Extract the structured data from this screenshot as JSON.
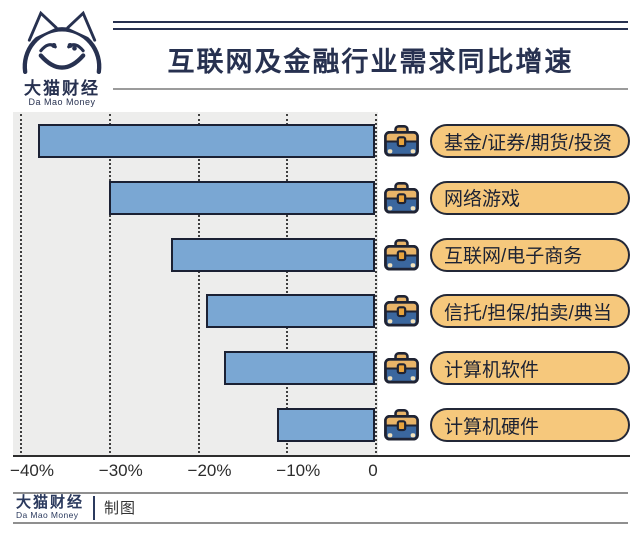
{
  "header": {
    "logo": {
      "name_cn": "大猫财经",
      "name_en": "Da Mao Money"
    },
    "title": "互联网及金融行业需求同比增速"
  },
  "chart_data": {
    "type": "bar",
    "orientation": "horizontal",
    "title": "互联网及金融行业需求同比增速",
    "categories": [
      "基金/证券/期货/投资",
      "网络游戏",
      "互联网/电子商务",
      "信托/担保/拍卖/典当",
      "计算机软件",
      "计算机硬件"
    ],
    "values": [
      -38,
      -30,
      -23,
      -19,
      -17,
      -11
    ],
    "unit": "%",
    "xlim": [
      -41,
      0.5
    ],
    "x_ticks": [
      {
        "label": "−40%",
        "value": -40
      },
      {
        "label": "−30%",
        "value": -30
      },
      {
        "label": "−20%",
        "value": -20
      },
      {
        "label": "−10%",
        "value": -10
      },
      {
        "label": "0",
        "value": 0
      }
    ],
    "grid": "dotted-vertical",
    "legend": "none",
    "row_icon": "briefcase-icon",
    "colors": {
      "bar": "#7aa7d3",
      "bar_border": "#1b2134",
      "plot_background": "#ededec",
      "gridline": "#3f3f3f",
      "label_pill": "#f6c87c",
      "pill_border": "#232838",
      "accent_navy": "#273150"
    }
  },
  "footer": {
    "brand_cn": "大猫财经",
    "brand_en": "Da Mao Money",
    "credit": "制图"
  }
}
